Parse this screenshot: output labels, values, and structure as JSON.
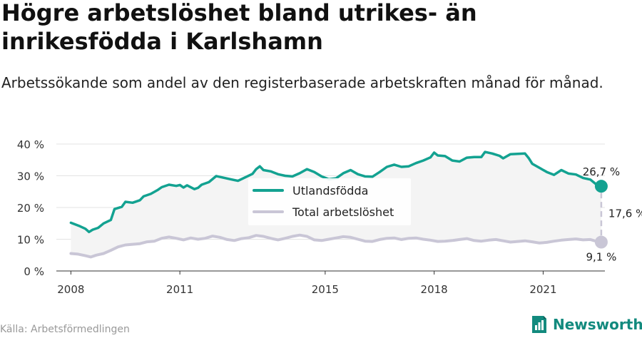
{
  "title": "Högre arbetslöshet bland utrikes- än inrikesfödda i Karlshamn",
  "subtitle": "Arbetssökande som andel av den registerbaserade arbetskraften månad för månad.",
  "source": "Källa: Arbetsförmedlingen",
  "brand": "Newsworthy",
  "colors": {
    "foreign": "#13a291",
    "total": "#c9c6d6",
    "band": "#f4f4f4",
    "brand": "#128a7e"
  },
  "annotations": {
    "foreign_end": "26,7 %",
    "total_end": "9,1 %",
    "difference": "17,6 %"
  },
  "chart_data": {
    "type": "line",
    "x_unit": "year",
    "xlim": [
      2007.6,
      2022.7
    ],
    "ylim": [
      0,
      40
    ],
    "x_ticks": [
      {
        "value": 2008,
        "label": "2008"
      },
      {
        "value": 2011,
        "label": "2011"
      },
      {
        "value": 2015,
        "label": "2015"
      },
      {
        "value": 2018,
        "label": "2018"
      },
      {
        "value": 2021,
        "label": "2021"
      }
    ],
    "y_ticks": [
      {
        "value": 0,
        "label": "0 %"
      },
      {
        "value": 10,
        "label": "10 %"
      },
      {
        "value": 20,
        "label": "20 %"
      },
      {
        "value": 30,
        "label": "30 %"
      },
      {
        "value": 40,
        "label": "40 %"
      }
    ],
    "grid": true,
    "legend_position": "center",
    "series": [
      {
        "name": "Utlandsfödda",
        "color": "#13a291",
        "points": [
          [
            2008.0,
            15.2
          ],
          [
            2008.25,
            14.1
          ],
          [
            2008.4,
            13.3
          ],
          [
            2008.5,
            12.3
          ],
          [
            2008.6,
            13.0
          ],
          [
            2008.75,
            13.6
          ],
          [
            2008.9,
            15.0
          ],
          [
            2009.1,
            16.1
          ],
          [
            2009.2,
            19.5
          ],
          [
            2009.4,
            20.2
          ],
          [
            2009.5,
            21.8
          ],
          [
            2009.7,
            21.5
          ],
          [
            2009.9,
            22.3
          ],
          [
            2010.0,
            23.5
          ],
          [
            2010.2,
            24.3
          ],
          [
            2010.4,
            25.6
          ],
          [
            2010.5,
            26.4
          ],
          [
            2010.7,
            27.2
          ],
          [
            2010.9,
            26.8
          ],
          [
            2011.0,
            27.1
          ],
          [
            2011.1,
            26.3
          ],
          [
            2011.2,
            27.0
          ],
          [
            2011.4,
            25.8
          ],
          [
            2011.5,
            26.2
          ],
          [
            2011.6,
            27.2
          ],
          [
            2011.8,
            28.0
          ],
          [
            2012.0,
            29.9
          ],
          [
            2012.2,
            29.4
          ],
          [
            2012.4,
            28.9
          ],
          [
            2012.6,
            28.4
          ],
          [
            2012.8,
            29.5
          ],
          [
            2013.0,
            30.6
          ],
          [
            2013.1,
            32.1
          ],
          [
            2013.2,
            33.0
          ],
          [
            2013.3,
            31.8
          ],
          [
            2013.5,
            31.4
          ],
          [
            2013.7,
            30.5
          ],
          [
            2013.9,
            30.0
          ],
          [
            2014.1,
            29.8
          ],
          [
            2014.3,
            30.8
          ],
          [
            2014.5,
            32.1
          ],
          [
            2014.7,
            31.2
          ],
          [
            2014.9,
            29.8
          ],
          [
            2015.1,
            28.9
          ],
          [
            2015.3,
            29.2
          ],
          [
            2015.5,
            30.8
          ],
          [
            2015.7,
            31.8
          ],
          [
            2015.9,
            30.5
          ],
          [
            2016.1,
            29.8
          ],
          [
            2016.3,
            29.7
          ],
          [
            2016.5,
            31.2
          ],
          [
            2016.7,
            32.8
          ],
          [
            2016.9,
            33.5
          ],
          [
            2017.1,
            32.8
          ],
          [
            2017.3,
            33.0
          ],
          [
            2017.5,
            34.0
          ],
          [
            2017.7,
            34.8
          ],
          [
            2017.9,
            35.8
          ],
          [
            2018.0,
            37.3
          ],
          [
            2018.1,
            36.4
          ],
          [
            2018.3,
            36.2
          ],
          [
            2018.5,
            34.8
          ],
          [
            2018.7,
            34.5
          ],
          [
            2018.9,
            35.7
          ],
          [
            2019.1,
            35.9
          ],
          [
            2019.3,
            35.9
          ],
          [
            2019.4,
            37.5
          ],
          [
            2019.6,
            37.0
          ],
          [
            2019.8,
            36.3
          ],
          [
            2019.9,
            35.5
          ],
          [
            2020.1,
            36.8
          ],
          [
            2020.3,
            36.9
          ],
          [
            2020.5,
            37.0
          ],
          [
            2020.6,
            35.6
          ],
          [
            2020.7,
            33.8
          ],
          [
            2020.9,
            32.5
          ],
          [
            2021.1,
            31.2
          ],
          [
            2021.3,
            30.3
          ],
          [
            2021.5,
            31.8
          ],
          [
            2021.7,
            30.7
          ],
          [
            2021.9,
            30.4
          ],
          [
            2022.1,
            29.3
          ],
          [
            2022.3,
            28.8
          ],
          [
            2022.45,
            27.4
          ],
          [
            2022.6,
            26.7
          ]
        ]
      },
      {
        "name": "Total arbetslöshet",
        "color": "#c9c6d6",
        "points": [
          [
            2008.0,
            5.5
          ],
          [
            2008.2,
            5.3
          ],
          [
            2008.4,
            4.8
          ],
          [
            2008.55,
            4.4
          ],
          [
            2008.7,
            5.0
          ],
          [
            2008.9,
            5.5
          ],
          [
            2009.1,
            6.5
          ],
          [
            2009.3,
            7.6
          ],
          [
            2009.5,
            8.2
          ],
          [
            2009.7,
            8.4
          ],
          [
            2009.9,
            8.6
          ],
          [
            2010.1,
            9.2
          ],
          [
            2010.3,
            9.4
          ],
          [
            2010.5,
            10.3
          ],
          [
            2010.7,
            10.7
          ],
          [
            2010.9,
            10.3
          ],
          [
            2011.1,
            9.8
          ],
          [
            2011.3,
            10.4
          ],
          [
            2011.5,
            10.0
          ],
          [
            2011.7,
            10.3
          ],
          [
            2011.9,
            11.0
          ],
          [
            2012.1,
            10.6
          ],
          [
            2012.3,
            9.9
          ],
          [
            2012.5,
            9.6
          ],
          [
            2012.7,
            10.2
          ],
          [
            2012.9,
            10.5
          ],
          [
            2013.1,
            11.2
          ],
          [
            2013.3,
            10.9
          ],
          [
            2013.5,
            10.3
          ],
          [
            2013.7,
            9.8
          ],
          [
            2013.9,
            10.3
          ],
          [
            2014.1,
            10.9
          ],
          [
            2014.3,
            11.3
          ],
          [
            2014.5,
            10.9
          ],
          [
            2014.7,
            9.8
          ],
          [
            2014.9,
            9.6
          ],
          [
            2015.1,
            10.0
          ],
          [
            2015.3,
            10.4
          ],
          [
            2015.5,
            10.8
          ],
          [
            2015.7,
            10.6
          ],
          [
            2015.9,
            10.0
          ],
          [
            2016.1,
            9.4
          ],
          [
            2016.3,
            9.3
          ],
          [
            2016.5,
            9.9
          ],
          [
            2016.7,
            10.3
          ],
          [
            2016.9,
            10.4
          ],
          [
            2017.1,
            9.9
          ],
          [
            2017.3,
            10.3
          ],
          [
            2017.5,
            10.4
          ],
          [
            2017.7,
            10.0
          ],
          [
            2017.9,
            9.7
          ],
          [
            2018.1,
            9.3
          ],
          [
            2018.3,
            9.4
          ],
          [
            2018.5,
            9.6
          ],
          [
            2018.7,
            9.9
          ],
          [
            2018.9,
            10.2
          ],
          [
            2019.1,
            9.6
          ],
          [
            2019.3,
            9.4
          ],
          [
            2019.5,
            9.7
          ],
          [
            2019.7,
            9.9
          ],
          [
            2019.9,
            9.5
          ],
          [
            2020.1,
            9.1
          ],
          [
            2020.3,
            9.3
          ],
          [
            2020.5,
            9.5
          ],
          [
            2020.7,
            9.2
          ],
          [
            2020.9,
            8.8
          ],
          [
            2021.1,
            9.0
          ],
          [
            2021.3,
            9.4
          ],
          [
            2021.5,
            9.7
          ],
          [
            2021.7,
            9.9
          ],
          [
            2021.9,
            10.1
          ],
          [
            2022.1,
            9.8
          ],
          [
            2022.3,
            9.9
          ],
          [
            2022.45,
            9.4
          ],
          [
            2022.6,
            9.1
          ]
        ]
      }
    ]
  }
}
